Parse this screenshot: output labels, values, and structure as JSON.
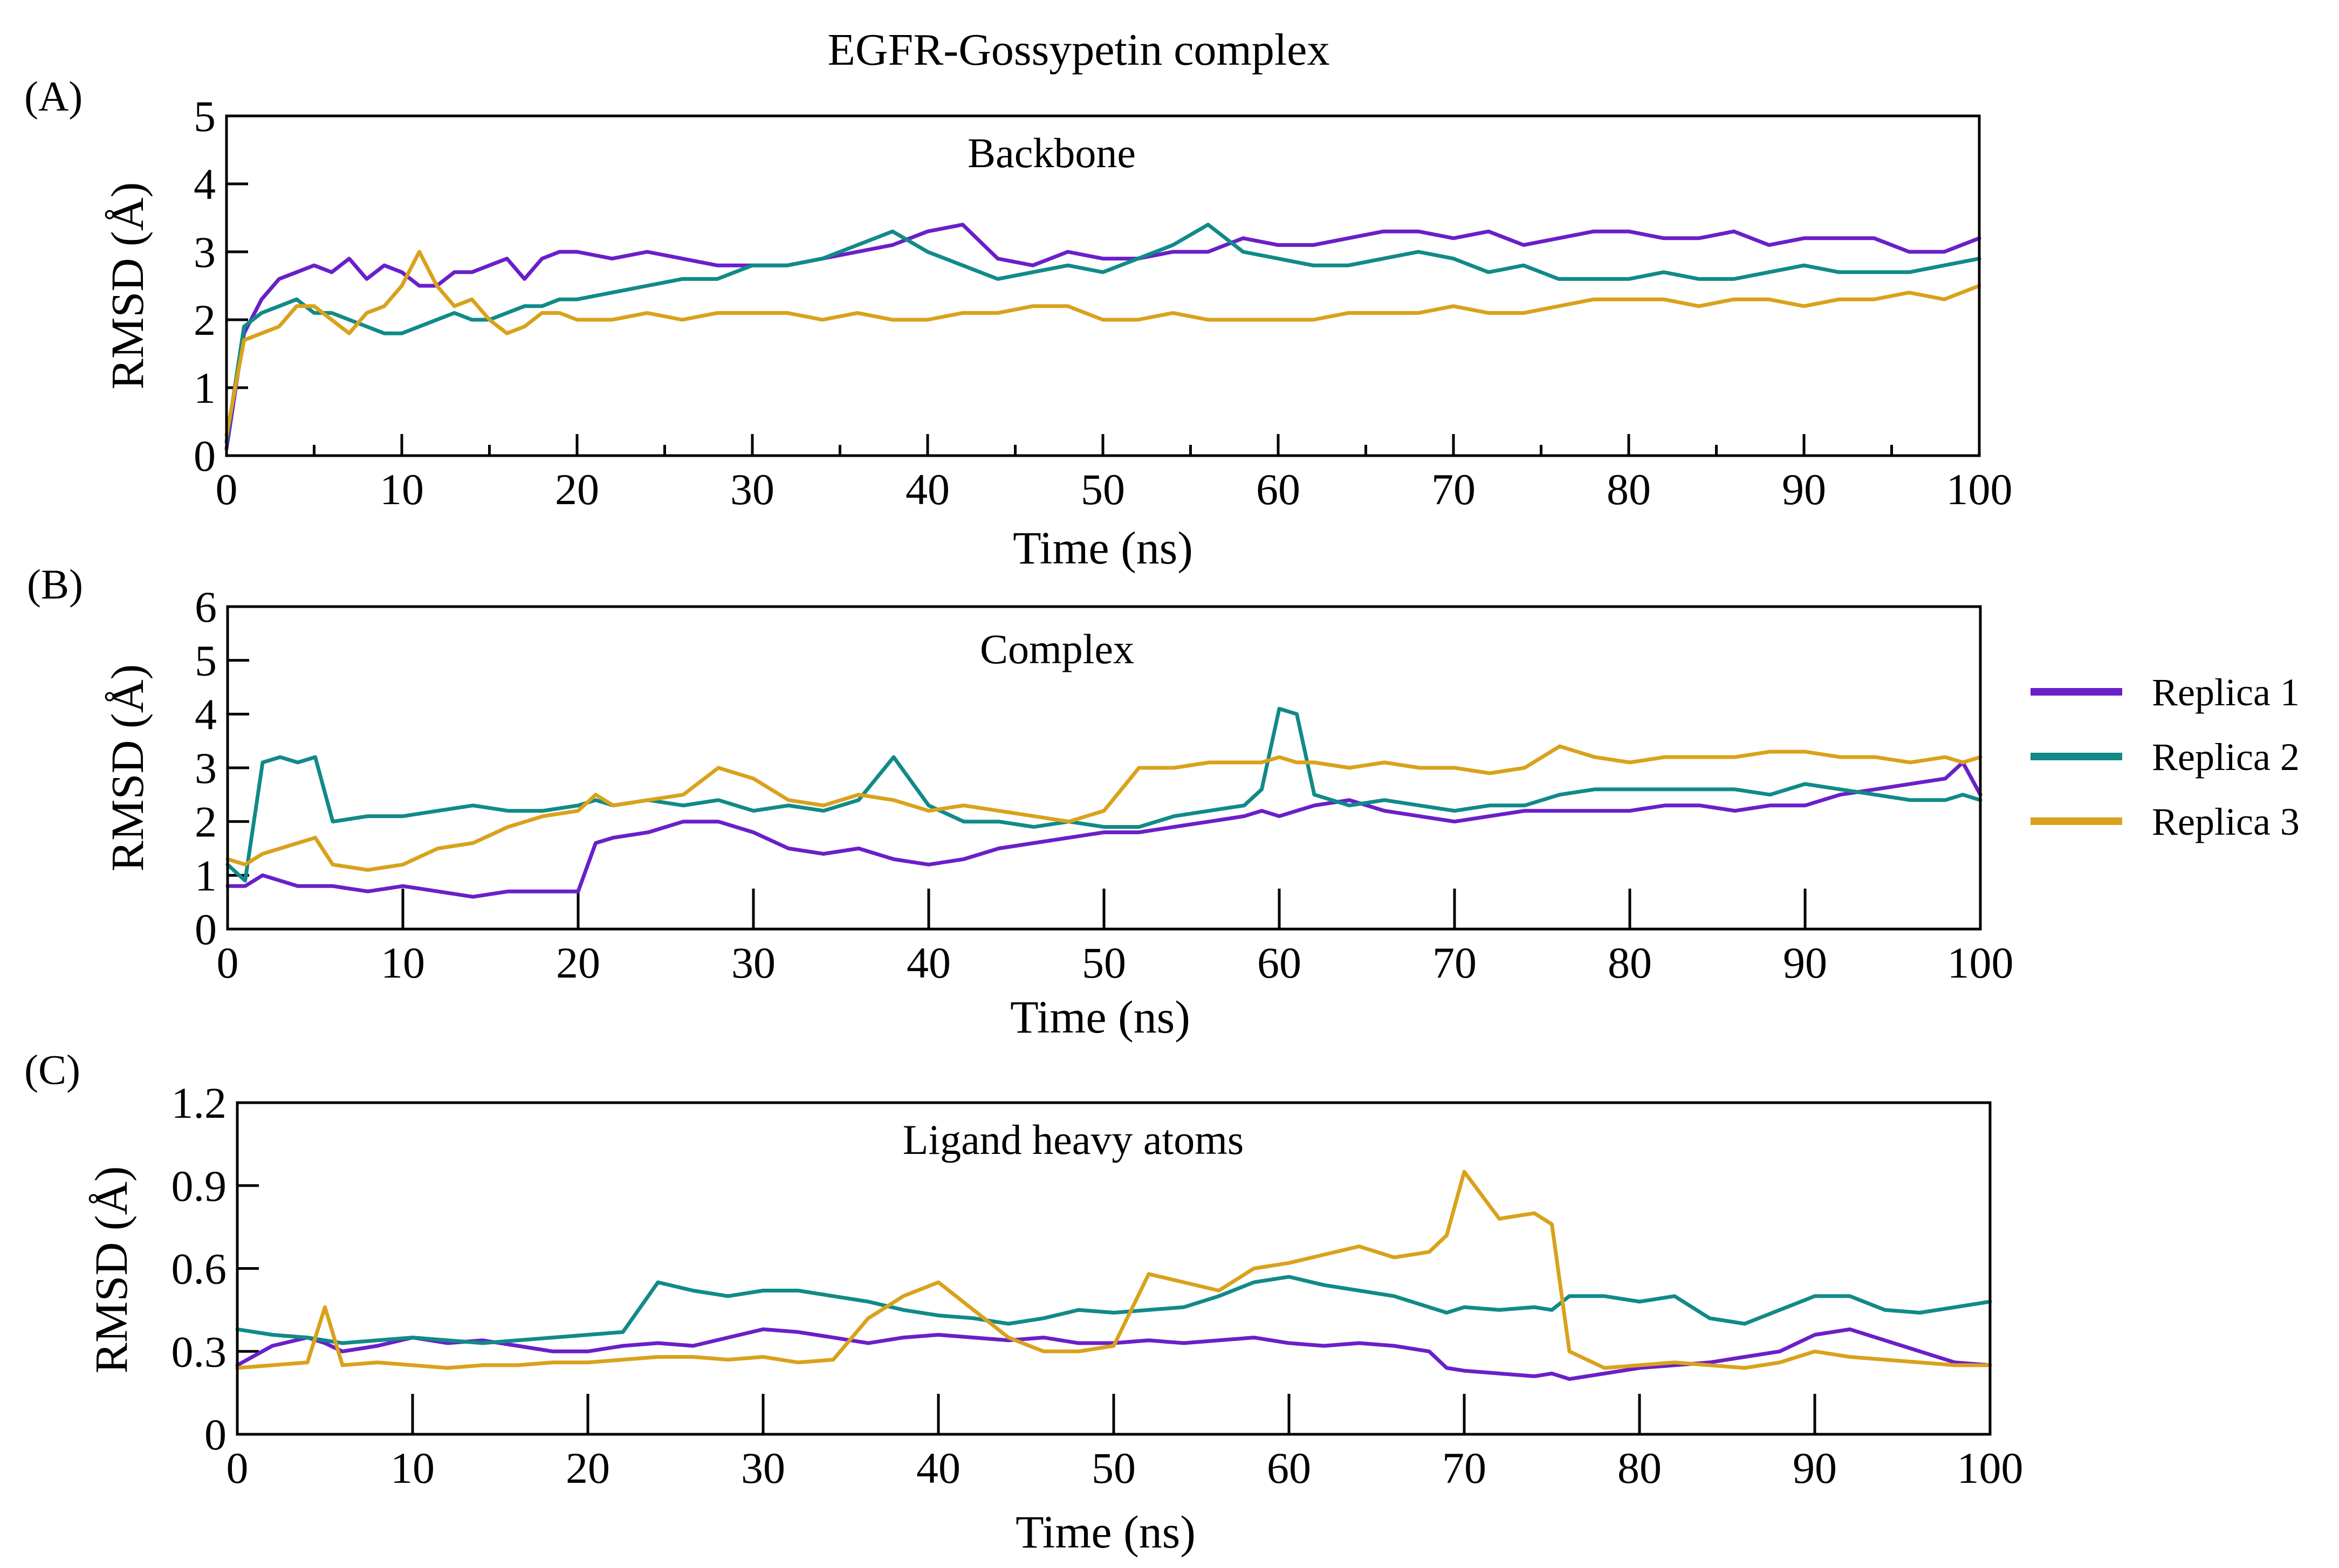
{
  "figure_title": "EGFR-Gossypetin complex",
  "legend": {
    "items": [
      {
        "name": "Replica 1",
        "color": "#6a1fc9"
      },
      {
        "name": "Replica 2",
        "color": "#118a88"
      },
      {
        "name": "Replica 3",
        "color": "#d9a21c"
      }
    ]
  },
  "chart_data": [
    {
      "type": "line",
      "panel": "(A)",
      "title": "Backbone",
      "xlabel": "Time (ns)",
      "ylabel": "RMSD (Å)",
      "xlim": [
        0,
        100
      ],
      "ylim": [
        0,
        5
      ],
      "xticks": [
        0,
        10,
        20,
        30,
        40,
        50,
        60,
        70,
        80,
        90,
        100
      ],
      "yticks": [
        0,
        1,
        2,
        3,
        4,
        5
      ],
      "ytick_labels": [
        "0",
        "1",
        "2",
        "3",
        "4",
        "5"
      ],
      "grid": false,
      "x": [
        0,
        1,
        2,
        3,
        4,
        5,
        6,
        7,
        8,
        9,
        10,
        11,
        12,
        13,
        14,
        15,
        16,
        17,
        18,
        19,
        20,
        22,
        24,
        26,
        28,
        30,
        32,
        34,
        36,
        38,
        40,
        42,
        44,
        46,
        48,
        50,
        52,
        54,
        56,
        58,
        60,
        62,
        64,
        66,
        68,
        70,
        72,
        74,
        76,
        78,
        80,
        82,
        84,
        86,
        88,
        90,
        92,
        94,
        96,
        98,
        100
      ],
      "series": [
        {
          "name": "Replica 1",
          "values": [
            0.1,
            1.8,
            2.3,
            2.6,
            2.7,
            2.8,
            2.7,
            2.9,
            2.6,
            2.8,
            2.7,
            2.5,
            2.5,
            2.7,
            2.7,
            2.8,
            2.9,
            2.6,
            2.9,
            3.0,
            3.0,
            2.9,
            3.0,
            2.9,
            2.8,
            2.8,
            2.8,
            2.9,
            3.0,
            3.1,
            3.3,
            3.4,
            2.9,
            2.8,
            3.0,
            2.9,
            2.9,
            3.0,
            3.0,
            3.2,
            3.1,
            3.1,
            3.2,
            3.3,
            3.3,
            3.2,
            3.3,
            3.1,
            3.2,
            3.3,
            3.3,
            3.2,
            3.2,
            3.3,
            3.1,
            3.2,
            3.2,
            3.2,
            3.0,
            3.0,
            3.2
          ]
        },
        {
          "name": "Replica 2",
          "values": [
            0.2,
            1.9,
            2.1,
            2.2,
            2.3,
            2.1,
            2.1,
            2.0,
            1.9,
            1.8,
            1.8,
            1.9,
            2.0,
            2.1,
            2.0,
            2.0,
            2.1,
            2.2,
            2.2,
            2.3,
            2.3,
            2.4,
            2.5,
            2.6,
            2.6,
            2.8,
            2.8,
            2.9,
            3.1,
            3.3,
            3.0,
            2.8,
            2.6,
            2.7,
            2.8,
            2.7,
            2.9,
            3.1,
            3.4,
            3.0,
            2.9,
            2.8,
            2.8,
            2.9,
            3.0,
            2.9,
            2.7,
            2.8,
            2.6,
            2.6,
            2.6,
            2.7,
            2.6,
            2.6,
            2.7,
            2.8,
            2.7,
            2.7,
            2.7,
            2.8,
            2.9
          ]
        },
        {
          "name": "Replica 3",
          "values": [
            0.3,
            1.7,
            1.8,
            1.9,
            2.2,
            2.2,
            2.0,
            1.8,
            2.1,
            2.2,
            2.5,
            3.0,
            2.5,
            2.2,
            2.3,
            2.0,
            1.8,
            1.9,
            2.1,
            2.1,
            2.0,
            2.0,
            2.1,
            2.0,
            2.1,
            2.1,
            2.1,
            2.0,
            2.1,
            2.0,
            2.0,
            2.1,
            2.1,
            2.2,
            2.2,
            2.0,
            2.0,
            2.1,
            2.0,
            2.0,
            2.0,
            2.0,
            2.1,
            2.1,
            2.1,
            2.2,
            2.1,
            2.1,
            2.2,
            2.3,
            2.3,
            2.3,
            2.2,
            2.3,
            2.3,
            2.2,
            2.3,
            2.3,
            2.4,
            2.3,
            2.5
          ]
        }
      ]
    },
    {
      "type": "line",
      "panel": "(B)",
      "title": "Complex",
      "xlabel": "Time (ns)",
      "ylabel": "RMSD (Å)",
      "xlim": [
        0,
        100
      ],
      "ylim": [
        0,
        6
      ],
      "xticks": [
        0,
        10,
        20,
        30,
        40,
        50,
        60,
        70,
        80,
        90,
        100
      ],
      "yticks": [
        0,
        1,
        2,
        3,
        4,
        5,
        6
      ],
      "ytick_labels": [
        "0",
        "1",
        "2",
        "3",
        "4",
        "5",
        "6"
      ],
      "grid": false,
      "x": [
        0,
        1,
        2,
        3,
        4,
        5,
        6,
        8,
        10,
        12,
        14,
        16,
        18,
        20,
        21,
        22,
        24,
        26,
        28,
        30,
        32,
        34,
        36,
        38,
        40,
        42,
        44,
        46,
        48,
        50,
        52,
        54,
        56,
        58,
        59,
        60,
        61,
        62,
        64,
        66,
        68,
        70,
        72,
        74,
        76,
        78,
        80,
        82,
        84,
        86,
        88,
        90,
        92,
        94,
        96,
        98,
        99,
        100
      ],
      "series": [
        {
          "name": "Replica 1",
          "values": [
            0.8,
            0.8,
            1.0,
            0.9,
            0.8,
            0.8,
            0.8,
            0.7,
            0.8,
            0.7,
            0.6,
            0.7,
            0.7,
            0.7,
            1.6,
            1.7,
            1.8,
            2.0,
            2.0,
            1.8,
            1.5,
            1.4,
            1.5,
            1.3,
            1.2,
            1.3,
            1.5,
            1.6,
            1.7,
            1.8,
            1.8,
            1.9,
            2.0,
            2.1,
            2.2,
            2.1,
            2.2,
            2.3,
            2.4,
            2.2,
            2.1,
            2.0,
            2.1,
            2.2,
            2.2,
            2.2,
            2.2,
            2.3,
            2.3,
            2.2,
            2.3,
            2.3,
            2.5,
            2.6,
            2.7,
            2.8,
            3.1,
            2.5
          ]
        },
        {
          "name": "Replica 2",
          "values": [
            1.2,
            0.9,
            3.1,
            3.2,
            3.1,
            3.2,
            2.0,
            2.1,
            2.1,
            2.2,
            2.3,
            2.2,
            2.2,
            2.3,
            2.4,
            2.3,
            2.4,
            2.3,
            2.4,
            2.2,
            2.3,
            2.2,
            2.4,
            3.2,
            2.3,
            2.0,
            2.0,
            1.9,
            2.0,
            1.9,
            1.9,
            2.1,
            2.2,
            2.3,
            2.6,
            4.1,
            4.0,
            2.5,
            2.3,
            2.4,
            2.3,
            2.2,
            2.3,
            2.3,
            2.5,
            2.6,
            2.6,
            2.6,
            2.6,
            2.6,
            2.5,
            2.7,
            2.6,
            2.5,
            2.4,
            2.4,
            2.5,
            2.4
          ]
        },
        {
          "name": "Replica 3",
          "values": [
            1.3,
            1.2,
            1.4,
            1.5,
            1.6,
            1.7,
            1.2,
            1.1,
            1.2,
            1.5,
            1.6,
            1.9,
            2.1,
            2.2,
            2.5,
            2.3,
            2.4,
            2.5,
            3.0,
            2.8,
            2.4,
            2.3,
            2.5,
            2.4,
            2.2,
            2.3,
            2.2,
            2.1,
            2.0,
            2.2,
            3.0,
            3.0,
            3.1,
            3.1,
            3.1,
            3.2,
            3.1,
            3.1,
            3.0,
            3.1,
            3.0,
            3.0,
            2.9,
            3.0,
            3.4,
            3.2,
            3.1,
            3.2,
            3.2,
            3.2,
            3.3,
            3.3,
            3.2,
            3.2,
            3.1,
            3.2,
            3.1,
            3.2
          ]
        }
      ]
    },
    {
      "type": "line",
      "panel": "(C)",
      "title": "Ligand heavy atoms",
      "xlabel": "Time (ns)",
      "ylabel": "RMSD (Å)",
      "xlim": [
        0,
        100
      ],
      "ylim": [
        0,
        1.2
      ],
      "xticks": [
        0,
        10,
        20,
        30,
        40,
        50,
        60,
        70,
        80,
        90,
        100
      ],
      "yticks": [
        0,
        0.3,
        0.6,
        0.9,
        1.2
      ],
      "ytick_labels": [
        "0",
        "0.3",
        "0.6",
        "0.9",
        "1.2"
      ],
      "grid": false,
      "x": [
        0,
        2,
        4,
        5,
        6,
        8,
        10,
        12,
        14,
        16,
        18,
        20,
        22,
        24,
        26,
        28,
        30,
        32,
        34,
        36,
        38,
        40,
        42,
        44,
        46,
        48,
        50,
        52,
        54,
        56,
        58,
        60,
        62,
        64,
        66,
        68,
        69,
        70,
        72,
        74,
        75,
        76,
        78,
        80,
        82,
        84,
        86,
        88,
        90,
        92,
        94,
        96,
        98,
        100
      ],
      "series": [
        {
          "name": "Replica 1",
          "values": [
            0.25,
            0.32,
            0.35,
            0.33,
            0.3,
            0.32,
            0.35,
            0.33,
            0.34,
            0.32,
            0.3,
            0.3,
            0.32,
            0.33,
            0.32,
            0.35,
            0.38,
            0.37,
            0.35,
            0.33,
            0.35,
            0.36,
            0.35,
            0.34,
            0.35,
            0.33,
            0.33,
            0.34,
            0.33,
            0.34,
            0.35,
            0.33,
            0.32,
            0.33,
            0.32,
            0.3,
            0.24,
            0.23,
            0.22,
            0.21,
            0.22,
            0.2,
            0.22,
            0.24,
            0.25,
            0.26,
            0.28,
            0.3,
            0.36,
            0.38,
            0.34,
            0.3,
            0.26,
            0.25
          ]
        },
        {
          "name": "Replica 2",
          "values": [
            0.38,
            0.36,
            0.35,
            0.34,
            0.33,
            0.34,
            0.35,
            0.34,
            0.33,
            0.34,
            0.35,
            0.36,
            0.37,
            0.55,
            0.52,
            0.5,
            0.52,
            0.52,
            0.5,
            0.48,
            0.45,
            0.43,
            0.42,
            0.4,
            0.42,
            0.45,
            0.44,
            0.45,
            0.46,
            0.5,
            0.55,
            0.57,
            0.54,
            0.52,
            0.5,
            0.46,
            0.44,
            0.46,
            0.45,
            0.46,
            0.45,
            0.5,
            0.5,
            0.48,
            0.5,
            0.42,
            0.4,
            0.45,
            0.5,
            0.5,
            0.45,
            0.44,
            0.46,
            0.48
          ]
        },
        {
          "name": "Replica 3",
          "values": [
            0.24,
            0.25,
            0.26,
            0.46,
            0.25,
            0.26,
            0.25,
            0.24,
            0.25,
            0.25,
            0.26,
            0.26,
            0.27,
            0.28,
            0.28,
            0.27,
            0.28,
            0.26,
            0.27,
            0.42,
            0.5,
            0.55,
            0.45,
            0.35,
            0.3,
            0.3,
            0.32,
            0.58,
            0.55,
            0.52,
            0.6,
            0.62,
            0.65,
            0.68,
            0.64,
            0.66,
            0.72,
            0.95,
            0.78,
            0.8,
            0.76,
            0.3,
            0.24,
            0.25,
            0.26,
            0.25,
            0.24,
            0.26,
            0.3,
            0.28,
            0.27,
            0.26,
            0.25,
            0.25
          ]
        }
      ]
    }
  ]
}
